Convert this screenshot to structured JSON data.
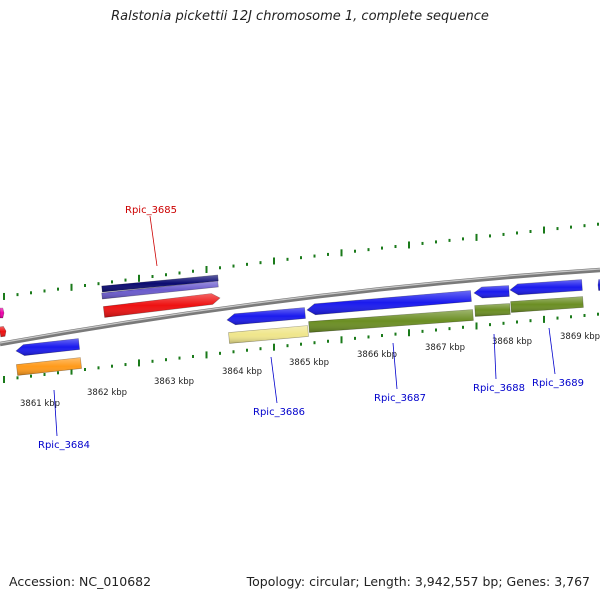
{
  "title": "Ralstonia pickettii 12J chromosome 1, complete sequence",
  "accession": "Accession: NC_010682",
  "topology": "Topology: circular; Length: 3,942,557 bp; Genes: 3,767",
  "scale_labels": [
    "3861 kbp",
    "3862 kbp",
    "3863 kbp",
    "3864 kbp",
    "3865 kbp",
    "3866 kbp",
    "3867 kbp",
    "3868 kbp",
    "3869 kbp"
  ],
  "genes": [
    {
      "id": "Rpic_3684",
      "color": "#0000cc"
    },
    {
      "id": "Rpic_3685",
      "color": "#cc0000"
    },
    {
      "id": "Rpic_3686",
      "color": "#0000cc"
    },
    {
      "id": "Rpic_3687",
      "color": "#0000cc"
    },
    {
      "id": "Rpic_3688",
      "color": "#0000cc"
    },
    {
      "id": "Rpic_3689",
      "color": "#0000cc"
    }
  ],
  "colors": {
    "backbone": "#808080",
    "tick": "#1a7a1a",
    "gene_blue": "#1a1aee",
    "gene_navy": "#0a0a70",
    "gene_violet": "#6a5acd",
    "gene_red": "#ee1111",
    "gene_orange": "#ff9a1a",
    "gene_khaki": "#f0e68c",
    "gene_olive": "#6b8e23",
    "gene_magenta": "#ee00aa"
  }
}
